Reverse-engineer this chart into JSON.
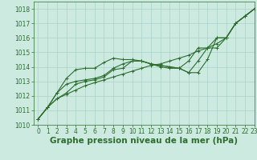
{
  "background_color": "#cceae0",
  "grid_color": "#aad4c8",
  "line_color": "#2d6e2d",
  "marker_color": "#2d6e2d",
  "xlabel": "Graphe pression niveau de la mer (hPa)",
  "ylim": [
    1010,
    1018.5
  ],
  "xlim": [
    -0.5,
    23
  ],
  "yticks": [
    1010,
    1011,
    1012,
    1013,
    1014,
    1015,
    1016,
    1017,
    1018
  ],
  "xticks": [
    0,
    1,
    2,
    3,
    4,
    5,
    6,
    7,
    8,
    9,
    10,
    11,
    12,
    13,
    14,
    15,
    16,
    17,
    18,
    19,
    20,
    21,
    22,
    23
  ],
  "series": [
    [
      1010.4,
      1011.2,
      1011.8,
      1012.1,
      1012.4,
      1012.7,
      1012.9,
      1013.1,
      1013.3,
      1013.5,
      1013.7,
      1013.9,
      1014.1,
      1014.2,
      1014.4,
      1014.6,
      1014.8,
      1015.1,
      1015.3,
      1015.6,
      1016.0,
      1017.0,
      1017.5,
      1018.0
    ],
    [
      1010.4,
      1011.2,
      1011.8,
      1012.2,
      1012.8,
      1013.0,
      1013.1,
      1013.3,
      1013.8,
      1013.9,
      1014.4,
      1014.4,
      1014.2,
      1014.1,
      1014.0,
      1013.9,
      1013.6,
      1014.4,
      1015.3,
      1015.3,
      1016.0,
      1017.0,
      1017.5,
      1018.0
    ],
    [
      1010.4,
      1011.2,
      1012.2,
      1012.8,
      1013.0,
      1013.1,
      1013.2,
      1013.4,
      1013.9,
      1014.2,
      1014.4,
      1014.4,
      1014.2,
      1014.0,
      1013.9,
      1013.9,
      1014.4,
      1015.3,
      1015.3,
      1016.0,
      1016.0,
      1017.0,
      1017.5,
      1018.0
    ],
    [
      1010.4,
      1011.2,
      1012.2,
      1013.2,
      1013.8,
      1013.9,
      1013.9,
      1014.3,
      1014.6,
      1014.5,
      1014.5,
      1014.4,
      1014.2,
      1014.1,
      1014.0,
      1013.9,
      1013.6,
      1013.6,
      1014.5,
      1016.0,
      1016.0,
      1017.0,
      1017.5,
      1018.0
    ]
  ],
  "marker": "+",
  "marker_size": 3,
  "line_width": 0.8,
  "tick_fontsize": 5.5,
  "xlabel_fontsize": 7.5,
  "xlabel_fontweight": "bold"
}
